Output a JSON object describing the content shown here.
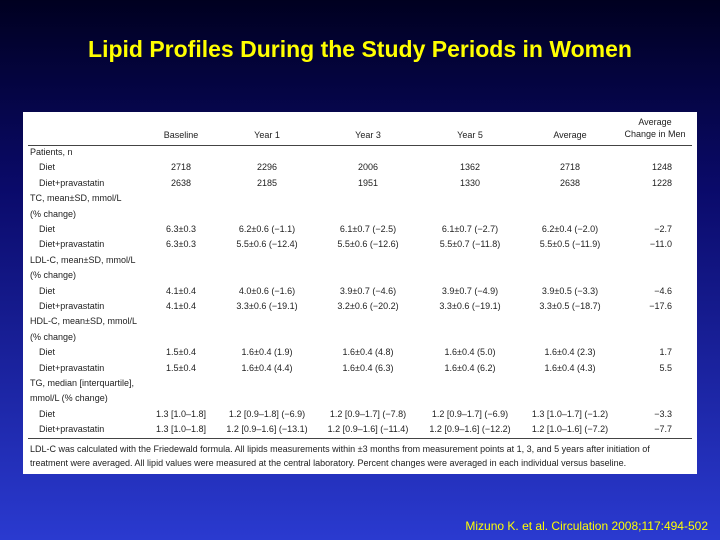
{
  "title": "Lipid Profiles During the Study Periods in Women",
  "table": {
    "header": [
      "Baseline",
      "Year 1",
      "Year 3",
      "Year 5",
      "Average",
      "Average Change in Men"
    ],
    "sections": [
      {
        "label_lines": [
          "Patients, n"
        ],
        "rows": [
          {
            "label": "Diet",
            "cells": [
              "2718",
              "2296",
              "2006",
              "1362",
              "2718",
              "1248"
            ]
          },
          {
            "label": "Diet+pravastatin",
            "cells": [
              "2638",
              "2185",
              "1951",
              "1330",
              "2638",
              "1228"
            ]
          }
        ]
      },
      {
        "label_lines": [
          "TC, mean±SD, mmol/L",
          "(% change)"
        ],
        "rows": [
          {
            "label": "Diet",
            "cells": [
              "6.3±0.3",
              "6.2±0.6 (−1.1)",
              "6.1±0.7 (−2.5)",
              "6.1±0.7 (−2.7)",
              "6.2±0.4 (−2.0)",
              "−2.7"
            ]
          },
          {
            "label": "Diet+pravastatin",
            "cells": [
              "6.3±0.3",
              "5.5±0.6 (−12.4)",
              "5.5±0.6 (−12.6)",
              "5.5±0.7 (−11.8)",
              "5.5±0.5 (−11.9)",
              "−11.0"
            ]
          }
        ]
      },
      {
        "label_lines": [
          "LDL-C, mean±SD, mmol/L",
          "(% change)"
        ],
        "rows": [
          {
            "label": "Diet",
            "cells": [
              "4.1±0.4",
              "4.0±0.6 (−1.6)",
              "3.9±0.7 (−4.6)",
              "3.9±0.7 (−4.9)",
              "3.9±0.5 (−3.3)",
              "−4.6"
            ]
          },
          {
            "label": "Diet+pravastatin",
            "cells": [
              "4.1±0.4",
              "3.3±0.6 (−19.1)",
              "3.2±0.6 (−20.2)",
              "3.3±0.6 (−19.1)",
              "3.3±0.5 (−18.7)",
              "−17.6"
            ]
          }
        ]
      },
      {
        "label_lines": [
          "HDL-C, mean±SD, mmol/L",
          "(% change)"
        ],
        "rows": [
          {
            "label": "Diet",
            "cells": [
              "1.5±0.4",
              "1.6±0.4 (1.9)",
              "1.6±0.4 (4.8)",
              "1.6±0.4 (5.0)",
              "1.6±0.4 (2.3)",
              "1.7"
            ]
          },
          {
            "label": "Diet+pravastatin",
            "cells": [
              "1.5±0.4",
              "1.6±0.4 (4.4)",
              "1.6±0.4 (6.3)",
              "1.6±0.4 (6.2)",
              "1.6±0.4 (4.3)",
              "5.5"
            ]
          }
        ]
      },
      {
        "label_lines": [
          "TG, median [interquartile],",
          "mmol/L (% change)"
        ],
        "rows": [
          {
            "label": "Diet",
            "cells": [
              "1.3 [1.0–1.8]",
              "1.2 [0.9–1.8] (−6.9)",
              "1.2 [0.9–1.7] (−7.8)",
              "1.2 [0.9–1.7] (−6.9)",
              "1.3 [1.0–1.7] (−1.2)",
              "−3.3"
            ]
          },
          {
            "label": "Diet+pravastatin",
            "cells": [
              "1.3 [1.0–1.8]",
              "1.2 [0.9–1.6] (−13.1)",
              "1.2 [0.9–1.6] (−11.4)",
              "1.2 [0.9–1.6] (−12.2)",
              "1.2 [1.0–1.6] (−7.2)",
              "−7.7"
            ]
          }
        ]
      }
    ],
    "footnote": "LDL-C was calculated with the Friedewald formula. All lipids measurements within ±3 months from measurement points at 1, 3, and 5 years after initiation of treatment were averaged. All lipid values were measured at the central laboratory. Percent changes were averaged in each individual versus baseline."
  },
  "citation": "Mizuno K. et al. Circulation 2008;117:494-502"
}
